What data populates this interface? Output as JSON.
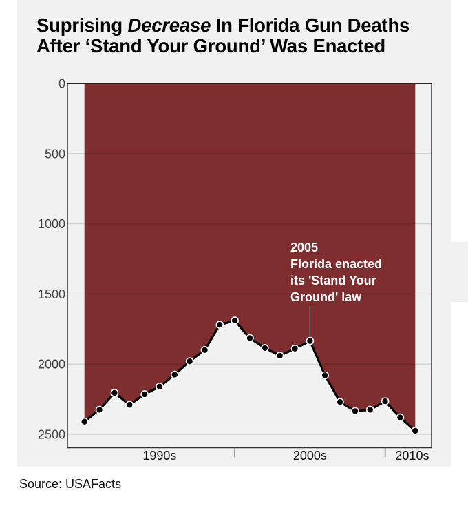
{
  "title": {
    "part1": "Suprising ",
    "emphasis": "Decrease",
    "part2": " In Florida Gun Deaths",
    "line2": "After ‘Stand Your Ground’ Was Enacted"
  },
  "source": "Source: USAFacts",
  "colors": {
    "fill": "#7f2e30",
    "background": "#f1f1f1",
    "line": "#000000",
    "marker_stroke": "#ffffff",
    "annotation_text": "#ffffff"
  },
  "chart_data": {
    "type": "area",
    "title": "Suprising Decrease In Florida Gun Deaths After ‘Stand Your Ground’ Was Enacted",
    "xlabel": "",
    "ylabel": "",
    "y_inverted": true,
    "ylim": [
      0,
      2600
    ],
    "yticks": [
      0,
      500,
      1000,
      1500,
      2000,
      2500
    ],
    "ytick_labels": [
      "0",
      "500",
      "1000",
      "1500",
      "2000",
      "2500"
    ],
    "grid": true,
    "x": [
      1990,
      1991,
      1992,
      1993,
      1994,
      1995,
      1996,
      1997,
      1998,
      1999,
      2000,
      2001,
      2002,
      2003,
      2004,
      2005,
      2006,
      2007,
      2008,
      2009,
      2010,
      2011,
      2012
    ],
    "xlim": [
      1989,
      2013.2
    ],
    "x_separators": [
      2000,
      2010
    ],
    "x_group_labels": [
      {
        "label": "1990s",
        "center": 1995
      },
      {
        "label": "2000s",
        "center": 2005
      },
      {
        "label": "2010s",
        "center": 2011.8
      }
    ],
    "series": [
      {
        "name": "Gun deaths",
        "values": [
          2410,
          2325,
          2205,
          2290,
          2215,
          2160,
          2075,
          1980,
          1900,
          1720,
          1690,
          1815,
          1885,
          1940,
          1890,
          1835,
          2080,
          2270,
          2335,
          2325,
          2265,
          2380,
          2475
        ]
      }
    ],
    "annotations": [
      {
        "x": 2005,
        "lines": [
          "2005",
          "Florida enacted",
          "its 'Stand Your",
          "Ground' law"
        ]
      }
    ]
  }
}
